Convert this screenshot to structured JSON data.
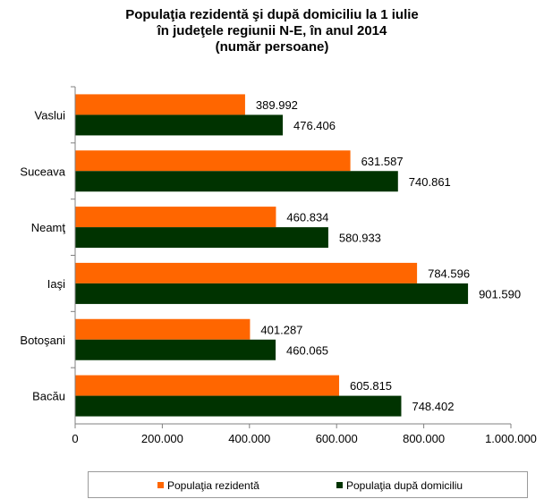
{
  "chart_data": {
    "type": "bar",
    "orientation": "horizontal",
    "title_lines": [
      "Populaţia rezidentă  şi după domiciliu la 1 iulie",
      "în judeţele regiunii N-E, în anul 2014",
      "(număr persoane)"
    ],
    "categories": [
      "Vaslui",
      "Suceava",
      "Neamţ",
      "Iaşi",
      "Botoşani",
      "Bacău"
    ],
    "series": [
      {
        "name": "Populaţia rezidentă",
        "color": "#ff6600",
        "values": [
          389992,
          631587,
          460834,
          784596,
          401287,
          605815
        ],
        "labels": [
          "389.992",
          "631.587",
          "460.834",
          "784.596",
          "401.287",
          "605.815"
        ]
      },
      {
        "name": "Populaţia după domiciliu",
        "color": "#003300",
        "values": [
          476406,
          740861,
          580933,
          901590,
          460065,
          748402
        ],
        "labels": [
          "476.406",
          "740.861",
          "580.933",
          "901.590",
          "460.065",
          "748.402"
        ]
      }
    ],
    "xlim": [
      0,
      1000000
    ],
    "xticks": [
      0,
      200000,
      400000,
      600000,
      800000,
      1000000
    ],
    "xtick_labels": [
      "0",
      "200.000",
      "400.000",
      "600.000",
      "800.000",
      "1.000.000"
    ],
    "grid": false,
    "legend_position": "bottom"
  }
}
